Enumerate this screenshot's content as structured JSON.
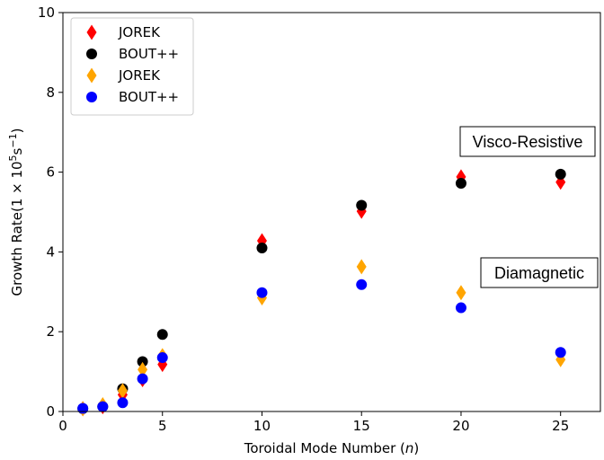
{
  "chart_data": {
    "type": "scatter",
    "xlabel": "Toroidal Mode Number (",
    "xlabel_var": "n",
    "xlabel_close": ")",
    "ylabel": "Growth Rate(1 × 10",
    "ylabel_exp1": "5",
    "ylabel_mid": "s",
    "ylabel_exp2": "−1",
    "ylabel_close": ")",
    "xlim": [
      0,
      27
    ],
    "ylim": [
      0,
      10
    ],
    "xticks": [
      0,
      5,
      10,
      15,
      20,
      25
    ],
    "yticks": [
      0,
      2,
      4,
      6,
      8,
      10
    ],
    "series": [
      {
        "name": "JOREK",
        "group": "Visco-Resistive",
        "color": "#ff0000",
        "marker": "diamond",
        "x": [
          1,
          2,
          3,
          4,
          5,
          10,
          15,
          20,
          25
        ],
        "y": [
          0.07,
          0.12,
          0.42,
          0.8,
          1.18,
          4.28,
          5.02,
          5.88,
          5.75
        ]
      },
      {
        "name": "BOUT++",
        "group": "Visco-Resistive",
        "color": "#000000",
        "marker": "circle",
        "x": [
          1,
          2,
          3,
          4,
          5,
          10,
          15,
          20,
          25
        ],
        "y": [
          0.07,
          0.12,
          0.57,
          1.25,
          1.93,
          4.1,
          5.17,
          5.72,
          5.95
        ]
      },
      {
        "name": "JOREK",
        "group": "Diamagnetic",
        "color": "#ffa500",
        "marker": "diamond",
        "x": [
          1,
          2,
          3,
          4,
          5,
          10,
          15,
          20,
          25
        ],
        "y": [
          0.07,
          0.17,
          0.52,
          1.05,
          1.4,
          2.85,
          3.63,
          2.98,
          1.3
        ]
      },
      {
        "name": "BOUT++",
        "group": "Diamagnetic",
        "color": "#0000ff",
        "marker": "circle",
        "x": [
          1,
          2,
          3,
          4,
          5,
          10,
          15,
          20,
          25
        ],
        "y": [
          0.08,
          0.12,
          0.22,
          0.82,
          1.35,
          2.98,
          3.18,
          2.6,
          1.48
        ]
      }
    ],
    "legend": {
      "location": "upper-left",
      "entries": [
        {
          "label": "JOREK",
          "color": "#ff0000",
          "marker": "diamond"
        },
        {
          "label": "BOUT++",
          "color": "#000000",
          "marker": "circle"
        },
        {
          "label": "JOREK",
          "color": "#ffa500",
          "marker": "diamond"
        },
        {
          "label": "BOUT++",
          "color": "#0000ff",
          "marker": "circle"
        }
      ]
    },
    "annotations": [
      {
        "id": "visco",
        "text": "Visco-Resistive"
      },
      {
        "id": "diamag",
        "text": "Diamagnetic"
      }
    ]
  }
}
